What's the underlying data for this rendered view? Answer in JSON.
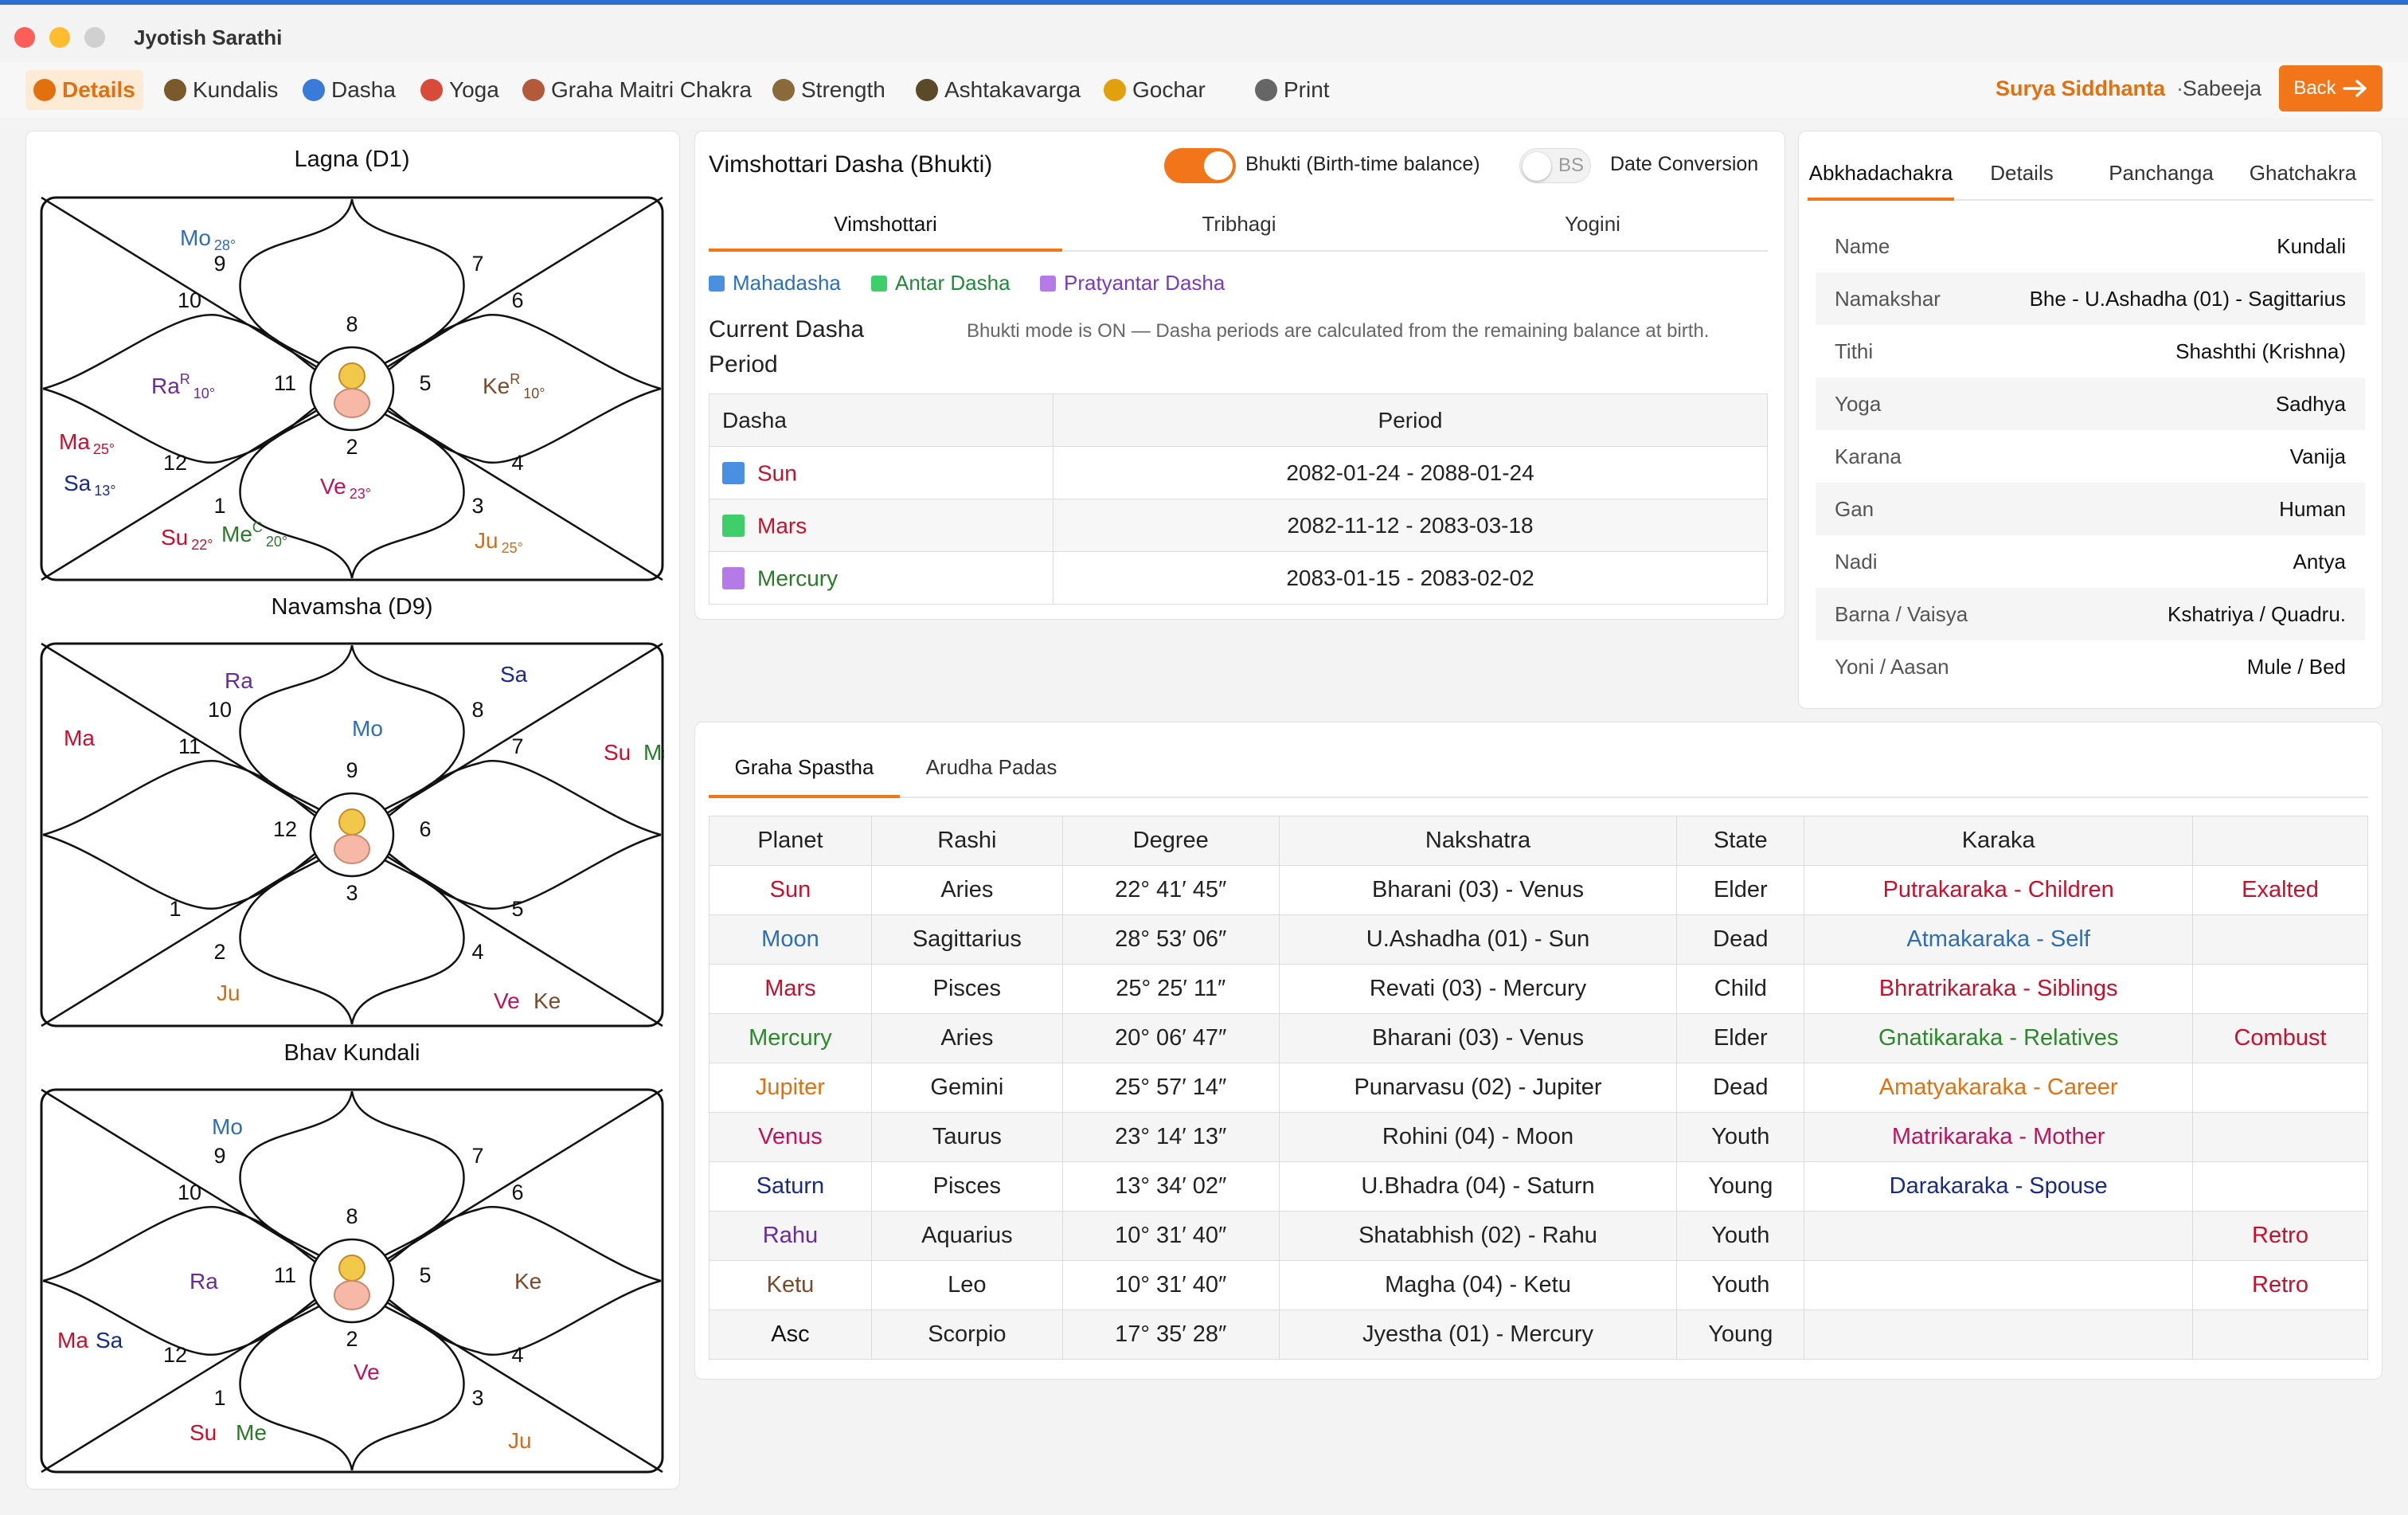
{
  "app": {
    "title": "Jyotish Sarathi"
  },
  "menu": {
    "items": [
      {
        "label": "Details",
        "icon": "document-icon",
        "color": "#e3700e"
      },
      {
        "label": "Kundalis",
        "icon": "wheel-icon",
        "color": "#7a5a2a"
      },
      {
        "label": "Dasha",
        "icon": "calendar-icon",
        "color": "#3a7ad8"
      },
      {
        "label": "Yoga",
        "icon": "yoga-icon",
        "color": "#d84a3a"
      },
      {
        "label": "Graha Maitri Chakra",
        "icon": "chakra-icon",
        "color": "#b25a3a"
      },
      {
        "label": "Strength",
        "icon": "strength-icon",
        "color": "#8a6a3a"
      },
      {
        "label": "Ashtakavarga",
        "icon": "ashtakavarga-icon",
        "color": "#5a4a2a"
      },
      {
        "label": "Gochar",
        "icon": "clock-icon",
        "color": "#e3a00e"
      },
      {
        "label": "Print",
        "icon": "print-icon",
        "color": "#666666"
      }
    ],
    "siddhanta": "Surya Siddhanta",
    "separator": "·",
    "sabeeja": "Sabeeja",
    "back_label": "Back"
  },
  "charts": {
    "lagna": {
      "title": "Lagna (D1)",
      "houses": [
        "8",
        "9",
        "10",
        "11",
        "12",
        "1",
        "2",
        "3",
        "4",
        "5",
        "6",
        "7"
      ],
      "planets": [
        {
          "name": "Mo",
          "deg": "28°",
          "color": "#2f6db5"
        },
        {
          "name": "Ra",
          "sup": "R",
          "deg": "10°",
          "color": "#6a2aa0"
        },
        {
          "name": "Ke",
          "sup": "R",
          "deg": "10°",
          "color": "#7a4a2a"
        },
        {
          "name": "Ma",
          "deg": "25°",
          "color": "#c8102e"
        },
        {
          "name": "Sa",
          "deg": "13°",
          "color": "#1a2a8a"
        },
        {
          "name": "Ve",
          "deg": "23°",
          "color": "#c0135a"
        },
        {
          "name": "Su",
          "deg": "22°",
          "color": "#c8102e"
        },
        {
          "name": "Me",
          "sup": "C",
          "deg": "20°",
          "color": "#2a7a2a"
        },
        {
          "name": "Ju",
          "deg": "25°",
          "color": "#d86a10"
        }
      ]
    },
    "navamsha": {
      "title": "Navamsha (D9)",
      "houses": [
        "9",
        "10",
        "11",
        "12",
        "1",
        "2",
        "3",
        "4",
        "5",
        "6",
        "7",
        "8"
      ],
      "planets": [
        {
          "name": "Ra",
          "color": "#6a2aa0"
        },
        {
          "name": "Sa",
          "color": "#1a2a8a"
        },
        {
          "name": "Ma",
          "color": "#c8102e"
        },
        {
          "name": "Mo",
          "color": "#2f6db5"
        },
        {
          "name": "Su",
          "color": "#c8102e"
        },
        {
          "name": "Me",
          "color": "#2a7a2a"
        },
        {
          "name": "Ju",
          "color": "#d86a10"
        },
        {
          "name": "Ve",
          "color": "#c0135a"
        },
        {
          "name": "Ke",
          "color": "#7a4a2a"
        }
      ]
    },
    "bhav": {
      "title": "Bhav Kundali",
      "houses": [
        "8",
        "9",
        "10",
        "11",
        "12",
        "1",
        "2",
        "3",
        "4",
        "5",
        "6",
        "7"
      ],
      "planets": [
        {
          "name": "Mo",
          "color": "#2f6db5"
        },
        {
          "name": "Ra",
          "color": "#6a2aa0"
        },
        {
          "name": "Ke",
          "color": "#7a4a2a"
        },
        {
          "name": "Ma",
          "color": "#c8102e"
        },
        {
          "name": "Sa",
          "color": "#1a2a8a"
        },
        {
          "name": "Ve",
          "color": "#c0135a"
        },
        {
          "name": "Su",
          "color": "#c8102e"
        },
        {
          "name": "Me",
          "color": "#2a7a2a"
        },
        {
          "name": "Ju",
          "color": "#d86a10"
        }
      ]
    }
  },
  "dasha": {
    "title": "Vimshottari Dasha (Bhukti)",
    "bhukti_label": "Bhukti (Birth-time balance)",
    "bs_label": "BS",
    "date_conversion_label": "Date Conversion",
    "tabs": [
      "Vimshottari",
      "Tribhagi",
      "Yogini"
    ],
    "legend": [
      {
        "label": "Mahadasha",
        "color": "#4a90e2",
        "text_color": "#2a6fc0"
      },
      {
        "label": "Antar Dasha",
        "color": "#3ecf6a",
        "text_color": "#1f8a3a"
      },
      {
        "label": "Pratyantar Dasha",
        "color": "#b57ae8",
        "text_color": "#7a3ac0"
      }
    ],
    "current_label_line1": "Current Dasha",
    "current_label_line2": "Period",
    "bhukti_message": "Bhukti mode is ON — Dasha periods are calculated from the remaining balance at birth.",
    "table_headers": [
      "Dasha",
      "Period"
    ],
    "rows": [
      {
        "name": "Sun",
        "color": "#4a90e2",
        "text_color": "#c8102e",
        "period": "2082-01-24 - 2088-01-24"
      },
      {
        "name": "Mars",
        "color": "#3ecf6a",
        "text_color": "#c8102e",
        "period": "2082-11-12 - 2083-03-18"
      },
      {
        "name": "Mercury",
        "color": "#b57ae8",
        "text_color": "#2a7a2a",
        "period": "2083-01-15 - 2083-02-02"
      }
    ]
  },
  "right": {
    "tabs": [
      "Abkhadachakra",
      "Details",
      "Panchanga",
      "Ghatchakra"
    ],
    "rows": [
      {
        "label": "Name",
        "value": "Kundali"
      },
      {
        "label": "Namakshar",
        "value": "Bhe - U.Ashadha (01) - Sagittarius"
      },
      {
        "label": "Tithi",
        "value": "Shashthi (Krishna)"
      },
      {
        "label": "Yoga",
        "value": "Sadhya"
      },
      {
        "label": "Karana",
        "value": "Vanija"
      },
      {
        "label": "Gan",
        "value": "Human"
      },
      {
        "label": "Nadi",
        "value": "Antya"
      },
      {
        "label": "Barna / Vaisya",
        "value": "Kshatriya / Quadru."
      },
      {
        "label": "Yoni / Aasan",
        "value": "Mule / Bed"
      }
    ]
  },
  "graha": {
    "tabs": [
      "Graha Spastha",
      "Arudha Padas"
    ],
    "headers": [
      "Planet",
      "Rashi",
      "Degree",
      "Nakshatra",
      "State",
      "Karaka",
      ""
    ],
    "rows": [
      {
        "planet": "Sun",
        "color": "#c8102e",
        "rashi": "Aries",
        "degree": "22° 41′ 45″",
        "nakshatra": "Bharani (03) - Venus",
        "state": "Elder",
        "karaka": "Putrakaraka - Children",
        "karaka_color": "#c8102e",
        "status": "Exalted"
      },
      {
        "planet": "Moon",
        "color": "#2f6db5",
        "rashi": "Sagittarius",
        "degree": "28° 53′ 06″",
        "nakshatra": "U.Ashadha (01) - Sun",
        "state": "Dead",
        "karaka": "Atmakaraka - Self",
        "karaka_color": "#2f6db5",
        "status": ""
      },
      {
        "planet": "Mars",
        "color": "#c8102e",
        "rashi": "Pisces",
        "degree": "25° 25′ 11″",
        "nakshatra": "Revati (03) - Mercury",
        "state": "Child",
        "karaka": "Bhratrikaraka - Siblings",
        "karaka_color": "#c8102e",
        "status": ""
      },
      {
        "planet": "Mercury",
        "color": "#2a8a2a",
        "rashi": "Aries",
        "degree": "20° 06′ 47″",
        "nakshatra": "Bharani (03) - Venus",
        "state": "Elder",
        "karaka": "Gnatikaraka - Relatives",
        "karaka_color": "#2a8a2a",
        "status": "Combust"
      },
      {
        "planet": "Jupiter",
        "color": "#e3700e",
        "rashi": "Gemini",
        "degree": "25° 57′ 14″",
        "nakshatra": "Punarvasu (02) - Jupiter",
        "state": "Dead",
        "karaka": "Amatyakaraka - Career",
        "karaka_color": "#e3700e",
        "status": ""
      },
      {
        "planet": "Venus",
        "color": "#c0135a",
        "rashi": "Taurus",
        "degree": "23° 14′ 13″",
        "nakshatra": "Rohini (04) - Moon",
        "state": "Youth",
        "karaka": "Matrikaraka - Mother",
        "karaka_color": "#c0135a",
        "status": ""
      },
      {
        "planet": "Saturn",
        "color": "#1a2a8a",
        "rashi": "Pisces",
        "degree": "13° 34′ 02″",
        "nakshatra": "U.Bhadra (04) - Saturn",
        "state": "Young",
        "karaka": "Darakaraka - Spouse",
        "karaka_color": "#1a2a8a",
        "status": ""
      },
      {
        "planet": "Rahu",
        "color": "#6a2aa0",
        "rashi": "Aquarius",
        "degree": "10° 31′ 40″",
        "nakshatra": "Shatabhish (02) - Rahu",
        "state": "Youth",
        "karaka": "",
        "karaka_color": "#333333",
        "status": "Retro"
      },
      {
        "planet": "Ketu",
        "color": "#7a4a2a",
        "rashi": "Leo",
        "degree": "10° 31′ 40″",
        "nakshatra": "Magha (04) - Ketu",
        "state": "Youth",
        "karaka": "",
        "karaka_color": "#333333",
        "status": "Retro"
      },
      {
        "planet": "Asc",
        "color": "#111111",
        "rashi": "Scorpio",
        "degree": "17° 35′ 28″",
        "nakshatra": "Jyestha (01) - Mercury",
        "state": "Young",
        "karaka": "",
        "karaka_color": "#333333",
        "status": ""
      }
    ]
  },
  "colors": {
    "accent": "#f2751a",
    "status_red": "#c8102e"
  }
}
